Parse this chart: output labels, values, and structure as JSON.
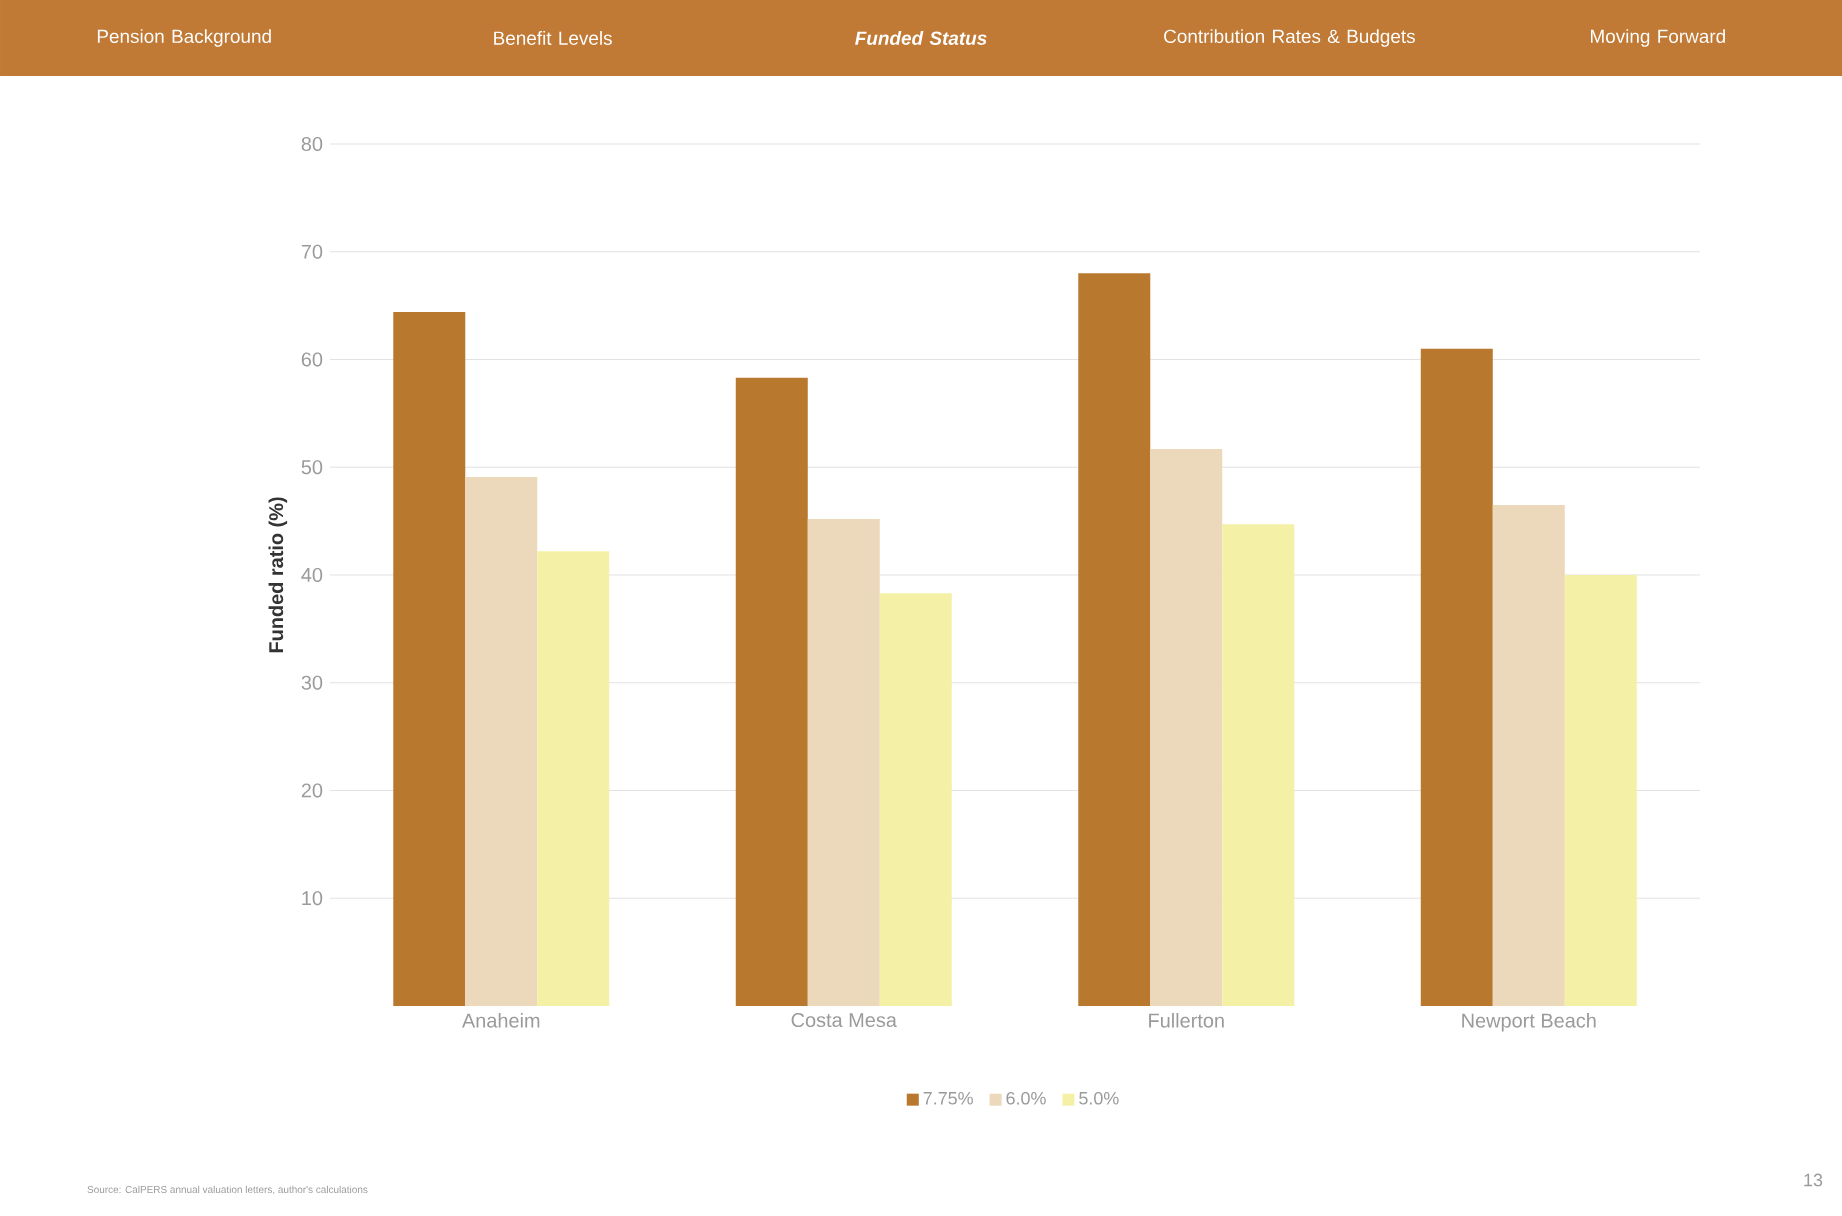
{
  "chart_data": {
    "type": "bar",
    "categories": [
      "Anaheim",
      "Costa Mesa",
      "Fullerton",
      "Newport Beach"
    ],
    "series": [
      {
        "name": "7.75%",
        "color": "#b8782e",
        "values": [
          64.4,
          58.3,
          68.0,
          61.0
        ]
      },
      {
        "name": "6.0%",
        "color": "#ecd9bb",
        "values": [
          49.1,
          45.2,
          51.7,
          46.5
        ]
      },
      {
        "name": "5.0%",
        "color": "#f4f0a6",
        "values": [
          42.2,
          38.3,
          44.7,
          40.0
        ]
      }
    ],
    "ylabel": "Funded ratio (%)",
    "ylim": [
      0,
      80
    ],
    "yticks": [
      10,
      20,
      30,
      40,
      50,
      60,
      70,
      80
    ],
    "grid": "y",
    "legend": "bottom",
    "annotations": [
      "Pension Background",
      "Benefit Levels",
      "Funded Status",
      "Contribution Rates & Budgets",
      "Moving Forward",
      "Source: CalPERS annual valuation letters, author's calculations",
      "13"
    ]
  }
}
